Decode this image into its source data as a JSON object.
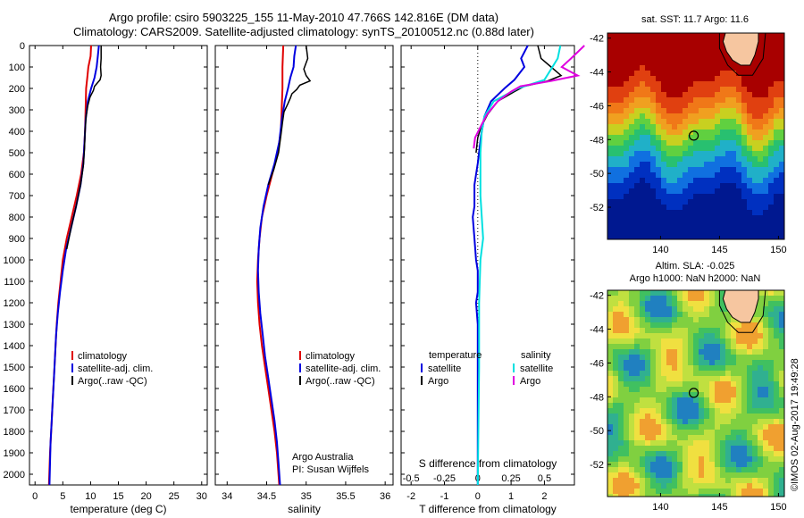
{
  "header": {
    "line1": "Argo profile: csiro 5903225_155 11-May-2010 47.766S 142.816E (DM data)",
    "line2": "Climatology: CARS2009. Satellite-adjusted climatology: synTS_20100512.nc (0.88d later)"
  },
  "depth_axis": {
    "ticks": [
      0,
      100,
      200,
      300,
      400,
      500,
      600,
      700,
      800,
      900,
      1000,
      1100,
      1200,
      1300,
      1400,
      1500,
      1600,
      1700,
      1800,
      1900,
      2000
    ],
    "range": [
      0,
      2050
    ]
  },
  "colors": {
    "clim": "#e00000",
    "sat": "#0000e0",
    "argo": "#000000",
    "sat_s": "#00e0e0",
    "argo_s": "#e000e0"
  },
  "chart_data": [
    {
      "type": "line",
      "name": "temperature",
      "xlabel": "temperature (deg C)",
      "xlim": [
        -1,
        31
      ],
      "xticks": [
        0,
        5,
        10,
        15,
        20,
        25,
        30
      ],
      "legend": [
        "climatology",
        "satellite-adj. clim.",
        "Argo(..raw -QC)"
      ],
      "series": [
        {
          "name": "climatology",
          "color_key": "clim",
          "points": [
            [
              10.1,
              0
            ],
            [
              10,
              50
            ],
            [
              9.6,
              100
            ],
            [
              9.4,
              150
            ],
            [
              9.2,
              200
            ],
            [
              9.1,
              300
            ],
            [
              9,
              400
            ],
            [
              8.8,
              500
            ],
            [
              8.3,
              600
            ],
            [
              7.5,
              700
            ],
            [
              6.6,
              800
            ],
            [
              5.7,
              900
            ],
            [
              5,
              1000
            ],
            [
              4.6,
              1100
            ],
            [
              4.2,
              1200
            ],
            [
              3.9,
              1300
            ],
            [
              3.7,
              1400
            ],
            [
              3.5,
              1500
            ],
            [
              3.3,
              1600
            ],
            [
              3.1,
              1700
            ],
            [
              2.9,
              1800
            ],
            [
              2.7,
              1900
            ],
            [
              2.5,
              2050
            ]
          ]
        },
        {
          "name": "satellite-adj. clim.",
          "color_key": "sat",
          "points": [
            [
              11.5,
              0
            ],
            [
              11.3,
              50
            ],
            [
              11.1,
              100
            ],
            [
              10.7,
              150
            ],
            [
              10.1,
              200
            ],
            [
              9.5,
              260
            ],
            [
              9.1,
              350
            ],
            [
              8.9,
              450
            ],
            [
              8.7,
              550
            ],
            [
              8.2,
              650
            ],
            [
              7.4,
              750
            ],
            [
              6.5,
              850
            ],
            [
              5.6,
              950
            ],
            [
              5,
              1050
            ],
            [
              4.5,
              1150
            ],
            [
              4.1,
              1250
            ],
            [
              3.8,
              1350
            ],
            [
              3.6,
              1450
            ],
            [
              3.4,
              1550
            ],
            [
              3.2,
              1650
            ],
            [
              3,
              1750
            ],
            [
              2.8,
              1850
            ],
            [
              2.7,
              1950
            ],
            [
              2.6,
              2050
            ]
          ]
        },
        {
          "name": "Argo(..raw -QC)",
          "color_key": "argo",
          "points": [
            [
              11.9,
              0
            ],
            [
              11.9,
              60
            ],
            [
              11.8,
              100
            ],
            [
              11.9,
              140
            ],
            [
              11.7,
              160
            ],
            [
              10.7,
              190
            ],
            [
              10.5,
              210
            ],
            [
              9.9,
              240
            ],
            [
              9.5,
              280
            ],
            [
              9.2,
              330
            ],
            [
              9,
              400
            ],
            [
              8.9,
              480
            ],
            [
              8.7,
              560
            ],
            [
              8.2,
              650
            ],
            [
              7.4,
              750
            ],
            [
              6.5,
              850
            ],
            [
              5.7,
              950
            ]
          ]
        }
      ],
      "annotations": []
    },
    {
      "type": "line",
      "name": "salinity",
      "xlabel": "salinity",
      "xlim": [
        33.85,
        36.1
      ],
      "xticks": [
        34,
        34.5,
        35,
        35.5,
        36
      ],
      "legend": [
        "climatology",
        "satellite-adj. clim.",
        "Argo(..raw -QC)"
      ],
      "series": [
        {
          "name": "climatology",
          "color_key": "clim",
          "points": [
            [
              34.71,
              0
            ],
            [
              34.7,
              100
            ],
            [
              34.7,
              200
            ],
            [
              34.69,
              300
            ],
            [
              34.68,
              400
            ],
            [
              34.64,
              500
            ],
            [
              34.57,
              600
            ],
            [
              34.5,
              700
            ],
            [
              34.44,
              800
            ],
            [
              34.41,
              900
            ],
            [
              34.39,
              1000
            ],
            [
              34.38,
              1100
            ],
            [
              34.39,
              1200
            ],
            [
              34.41,
              1300
            ],
            [
              34.44,
              1400
            ],
            [
              34.48,
              1500
            ],
            [
              34.52,
              1600
            ],
            [
              34.56,
              1700
            ],
            [
              34.6,
              1800
            ],
            [
              34.63,
              1900
            ],
            [
              34.66,
              2050
            ]
          ]
        },
        {
          "name": "satellite-adj. clim.",
          "color_key": "sat",
          "points": [
            [
              34.87,
              0
            ],
            [
              34.85,
              50
            ],
            [
              34.84,
              100
            ],
            [
              34.8,
              150
            ],
            [
              34.77,
              200
            ],
            [
              34.73,
              260
            ],
            [
              34.69,
              350
            ],
            [
              34.66,
              450
            ],
            [
              34.6,
              550
            ],
            [
              34.52,
              650
            ],
            [
              34.46,
              750
            ],
            [
              34.42,
              850
            ],
            [
              34.4,
              950
            ],
            [
              34.39,
              1050
            ],
            [
              34.4,
              1150
            ],
            [
              34.42,
              1250
            ],
            [
              34.45,
              1350
            ],
            [
              34.48,
              1450
            ],
            [
              34.52,
              1550
            ],
            [
              34.56,
              1650
            ],
            [
              34.6,
              1750
            ],
            [
              34.63,
              1850
            ],
            [
              34.65,
              1950
            ],
            [
              34.67,
              2050
            ]
          ]
        },
        {
          "name": "Argo(..raw -QC)",
          "color_key": "argo",
          "points": [
            [
              35,
              0
            ],
            [
              35.02,
              60
            ],
            [
              34.97,
              110
            ],
            [
              35,
              140
            ],
            [
              35.05,
              165
            ],
            [
              34.92,
              185
            ],
            [
              34.88,
              205
            ],
            [
              34.82,
              225
            ],
            [
              34.8,
              245
            ],
            [
              34.77,
              270
            ],
            [
              34.72,
              310
            ],
            [
              34.7,
              360
            ],
            [
              34.68,
              420
            ],
            [
              34.65,
              500
            ],
            [
              34.59,
              580
            ],
            [
              34.52,
              650
            ]
          ]
        }
      ],
      "annotations": [
        "Argo Australia",
        "PI: Susan Wijffels"
      ]
    },
    {
      "type": "line",
      "name": "differences",
      "xlabel": "T difference from climatology",
      "xlabel_top": "S difference from climatology",
      "xlim": [
        -2.3,
        2.9
      ],
      "xticks": [
        -2,
        -1,
        0,
        1,
        2
      ],
      "xticks_top": [
        -0.5,
        -0.25,
        0,
        0.25,
        0.5
      ],
      "legend_left_title": "temperature",
      "legend_right_title": "salinity",
      "legend": [
        "satellite",
        "Argo",
        "satellite",
        "Argo"
      ],
      "series": [
        {
          "name": "T satellite",
          "color_key": "sat",
          "points": [
            [
              1.5,
              0
            ],
            [
              1.3,
              60
            ],
            [
              1.4,
              100
            ],
            [
              1.1,
              160
            ],
            [
              0.8,
              200
            ],
            [
              0.4,
              260
            ],
            [
              0.2,
              330
            ],
            [
              0.1,
              420
            ],
            [
              0,
              550
            ],
            [
              -0.1,
              650
            ],
            [
              -0.1,
              750
            ],
            [
              -0.15,
              800
            ],
            [
              -0.1,
              900
            ],
            [
              -0.05,
              1000
            ],
            [
              0,
              1050
            ],
            [
              0,
              1150
            ],
            [
              -0.05,
              1200
            ],
            [
              0,
              1300
            ],
            [
              0,
              1400
            ],
            [
              0,
              1500
            ],
            [
              0,
              1600
            ],
            [
              0,
              1700
            ],
            [
              0,
              1800
            ],
            [
              0,
              1900
            ],
            [
              0,
              2050
            ]
          ]
        },
        {
          "name": "T Argo",
          "color_key": "argo",
          "points": [
            [
              1.8,
              0
            ],
            [
              1.9,
              60
            ],
            [
              2.2,
              100
            ],
            [
              2.5,
              140
            ],
            [
              2.1,
              165
            ],
            [
              1.4,
              190
            ],
            [
              1.1,
              215
            ],
            [
              0.6,
              260
            ],
            [
              0.3,
              320
            ],
            [
              0.1,
              380
            ],
            [
              0,
              430
            ],
            [
              -0.05,
              500
            ]
          ]
        },
        {
          "name": "S satellite",
          "color_key": "sat_s",
          "points": [
            [
              0.62,
              0
            ],
            [
              0.6,
              60
            ],
            [
              0.56,
              100
            ],
            [
              0.5,
              160
            ],
            [
              0.3,
              200
            ],
            [
              0.12,
              260
            ],
            [
              0.05,
              330
            ],
            [
              0.03,
              400
            ],
            [
              0.02,
              500
            ],
            [
              0.02,
              700
            ],
            [
              0.03,
              800
            ],
            [
              0.04,
              900
            ],
            [
              0.02,
              1000
            ],
            [
              0.01,
              1200
            ],
            [
              0.01,
              1500
            ],
            [
              0,
              2050
            ]
          ]
        },
        {
          "name": "S Argo",
          "color_key": "argo_s",
          "points": [
            [
              0.8,
              0
            ],
            [
              0.7,
              60
            ],
            [
              0.63,
              100
            ],
            [
              0.75,
              140
            ],
            [
              0.55,
              165
            ],
            [
              0.32,
              190
            ],
            [
              0.25,
              215
            ],
            [
              0.15,
              260
            ],
            [
              0.07,
              320
            ],
            [
              0.02,
              380
            ],
            [
              -0.02,
              430
            ],
            [
              -0.03,
              480
            ]
          ]
        }
      ],
      "annotations": []
    }
  ],
  "maps": [
    {
      "name": "sst-map",
      "title": "sat. SST: 11.7 Argo: 11.6",
      "yticks": [
        -42,
        -44,
        -46,
        -48,
        -50,
        -52
      ],
      "xticks": [
        140,
        145,
        150
      ]
    },
    {
      "name": "sla-map",
      "title_line1": "Altim. SLA: -0.025",
      "title_line2": "Argo h1000: NaN h2000: NaN",
      "yticks": [
        -42,
        -44,
        -46,
        -48,
        -50,
        -52
      ],
      "xticks": [
        140,
        145,
        150
      ]
    }
  ],
  "sidebar_text": "©IMOS 02-Aug-2017 19:49:28"
}
